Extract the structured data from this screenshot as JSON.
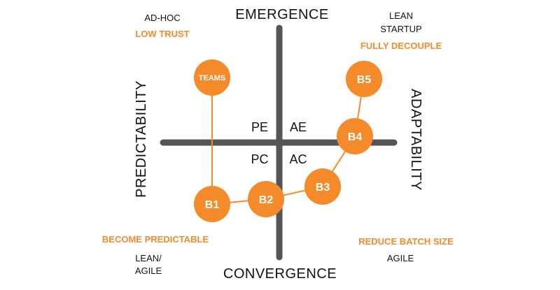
{
  "colors": {
    "axis": "#555555",
    "accent": "#f58a2b",
    "text": "#111111",
    "node_text": "#ffffff"
  },
  "axes": {
    "top": "EMERGENCE",
    "bottom": "CONVERGENCE",
    "left": "PREDICTABILITY",
    "right": "ADAPTABILITY"
  },
  "quadrants": {
    "top_left": "PE",
    "top_right": "AE",
    "bottom_left": "PC",
    "bottom_right": "AC"
  },
  "corners": {
    "top_left": {
      "title": "AD-HOC",
      "subtitle": "LOW TRUST"
    },
    "top_right": {
      "title_lines": [
        "LEAN",
        "STARTUP"
      ],
      "subtitle": "FULLY DECOUPLE"
    },
    "bottom_left": {
      "subtitle": "BECOME PREDICTABLE",
      "title_lines": [
        "LEAN/",
        "AGILE"
      ]
    },
    "bottom_right": {
      "subtitle": "REDUCE BATCH SIZE",
      "title": "AGILE"
    }
  },
  "nodes": [
    {
      "id": "teams",
      "label": "TEAMS"
    },
    {
      "id": "b1",
      "label": "B1"
    },
    {
      "id": "b2",
      "label": "B2"
    },
    {
      "id": "b3",
      "label": "B3"
    },
    {
      "id": "b4",
      "label": "B4"
    },
    {
      "id": "b5",
      "label": "B5"
    }
  ]
}
